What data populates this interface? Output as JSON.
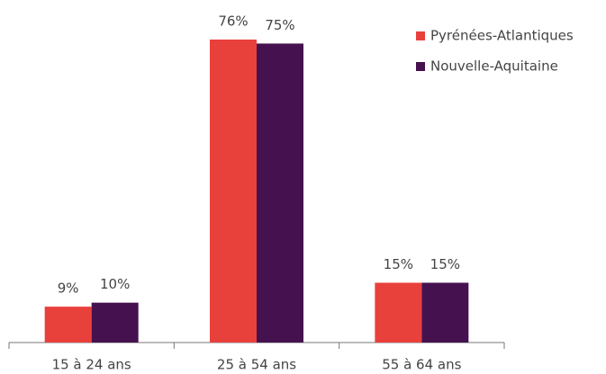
{
  "chart_data": {
    "type": "bar",
    "categories": [
      "15 à 24 ans",
      "25 à 54 ans",
      "55 à 64 ans"
    ],
    "series": [
      {
        "name": "Pyrénées-Atlantiques",
        "color": "#e8413c",
        "values": [
          9,
          76,
          15
        ],
        "value_labels": [
          "9%",
          "76%",
          "15%"
        ]
      },
      {
        "name": "Nouvelle-Aquitaine",
        "color": "#46114f",
        "values": [
          10,
          75,
          15
        ],
        "value_labels": [
          "10%",
          "75%",
          "15%"
        ]
      }
    ],
    "legend": "upper right"
  }
}
